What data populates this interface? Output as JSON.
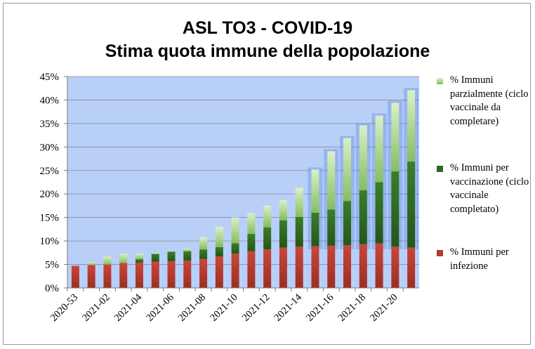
{
  "chart_data": {
    "type": "bar",
    "stacked": true,
    "title": [
      "ASL TO3 - COVID-19",
      "Stima quota immune della popolazione"
    ],
    "xlabel": "",
    "ylabel": "",
    "ylim": [
      0,
      45
    ],
    "y_ticks": [
      "0%",
      "5%",
      "10%",
      "15%",
      "20%",
      "25%",
      "30%",
      "35%",
      "40%",
      "45%"
    ],
    "grid": true,
    "legend_position": "right",
    "categories": [
      "2020-53",
      "2021-01",
      "2021-02",
      "2021-03",
      "2021-04",
      "2021-05",
      "2021-06",
      "2021-07",
      "2021-08",
      "2021-09",
      "2021-10",
      "2021-11",
      "2021-12",
      "2021-13",
      "2021-14",
      "2021-15",
      "2021-16",
      "2021-17",
      "2021-18",
      "2021-19",
      "2021-20",
      "2021-21"
    ],
    "x_tick_labels": [
      "2020-53",
      "",
      "2021-02",
      "",
      "2021-04",
      "",
      "2021-06",
      "",
      "2021-08",
      "",
      "2021-10",
      "",
      "2021-12",
      "",
      "2021-14",
      "",
      "2021-16",
      "",
      "2021-18",
      "",
      "2021-20",
      ""
    ],
    "series": [
      {
        "name": "% Immuni per infezione",
        "color": "#b5392c",
        "values": [
          4.7,
          4.9,
          5.0,
          5.3,
          5.4,
          5.6,
          5.7,
          5.8,
          6.2,
          6.7,
          7.3,
          7.8,
          8.2,
          8.6,
          8.8,
          8.9,
          9.0,
          9.1,
          9.3,
          9.5,
          8.8,
          8.6
        ]
      },
      {
        "name": "% Immuni per vaccinazione (ciclo vaccinale completato)",
        "color": "#2e6b1f",
        "values": [
          0.0,
          0.0,
          0.0,
          0.0,
          0.7,
          1.6,
          2.0,
          2.0,
          2.0,
          2.0,
          2.2,
          3.7,
          4.7,
          5.8,
          6.3,
          7.1,
          7.7,
          9.4,
          11.5,
          13.0,
          16.0,
          18.3
        ]
      },
      {
        "name": "% Immuni parzialmente (ciclo vaccinale da completare)",
        "color": "#9dcc72",
        "values": [
          0.0,
          0.6,
          1.7,
          2.0,
          1.2,
          0.3,
          0.1,
          0.6,
          2.6,
          4.3,
          5.5,
          4.4,
          4.6,
          4.3,
          6.2,
          9.2,
          12.4,
          13.4,
          13.8,
          14.2,
          14.6,
          15.2
        ]
      }
    ]
  },
  "legend": [
    {
      "label": "% Immuni parzialmente (ciclo vaccinale da completare)",
      "color": "#9dcc72"
    },
    {
      "label": "% Immuni per vaccinazione (ciclo vaccinale completato)",
      "color": "#2e6b1f"
    },
    {
      "label": "% Immuni per infezione",
      "color": "#b5392c"
    }
  ]
}
